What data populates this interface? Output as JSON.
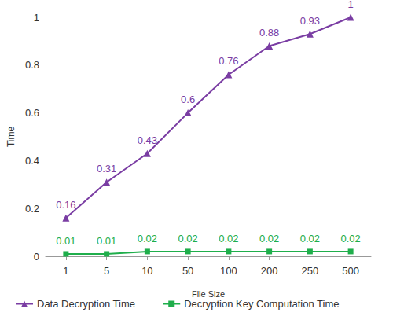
{
  "chart_data": {
    "type": "line",
    "x_label": "File Size",
    "y_label": "Time",
    "categories": [
      "1",
      "5",
      "10",
      "50",
      "100",
      "200",
      "250",
      "500"
    ],
    "series": [
      {
        "name": "Data Decryption Time",
        "color": "#7a3da3",
        "marker": "triangle",
        "values": [
          0.16,
          0.31,
          0.43,
          0.6,
          0.76,
          0.88,
          0.93,
          1
        ]
      },
      {
        "name": "Decryption Key Computation Time",
        "color": "#1fae4b",
        "marker": "square",
        "values": [
          0.01,
          0.01,
          0.02,
          0.02,
          0.02,
          0.02,
          0.02,
          0.02
        ]
      }
    ],
    "ylim": [
      0,
      1
    ],
    "yticks": [
      0,
      0.2,
      0.4,
      0.6,
      0.8,
      1
    ],
    "grid": false,
    "legend": "bottom",
    "data_labels": true
  }
}
